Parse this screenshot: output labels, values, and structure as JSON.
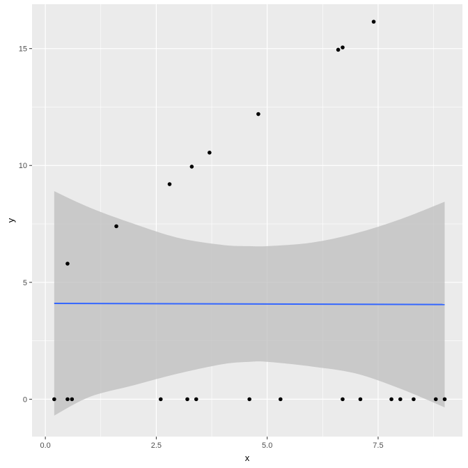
{
  "chart_data": {
    "type": "scatter",
    "title": "",
    "xlabel": "x",
    "ylabel": "y",
    "xlim": [
      -0.3,
      9.4
    ],
    "ylim": [
      -1.6,
      16.9
    ],
    "x_ticks": [
      0,
      2.5,
      5,
      7.5
    ],
    "x_tick_labels": [
      "0.0",
      "2.5",
      "5.0",
      "7.5"
    ],
    "y_ticks": [
      0,
      5,
      10,
      15
    ],
    "y_tick_labels": [
      "0",
      "5",
      "10",
      "15"
    ],
    "grid": true,
    "legend": "none",
    "points": {
      "x": [
        0.2,
        0.5,
        0.5,
        0.6,
        1.6,
        2.6,
        2.8,
        3.2,
        3.3,
        3.4,
        3.7,
        4.6,
        4.8,
        5.3,
        6.6,
        6.7,
        6.7,
        7.1,
        7.4,
        7.8,
        8.0,
        8.3,
        8.8,
        9.0
      ],
      "y": [
        0,
        5.8,
        0,
        0,
        7.4,
        0,
        9.2,
        0,
        9.95,
        0,
        10.55,
        0,
        12.2,
        0,
        14.95,
        15.05,
        0,
        0,
        16.15,
        0,
        0,
        0,
        0,
        0
      ]
    },
    "fit_line": {
      "method": "linear",
      "x": [
        0.2,
        9.0
      ],
      "y": [
        4.1,
        4.05
      ]
    },
    "confidence_band": {
      "x": [
        0.2,
        1.0,
        2.0,
        3.0,
        4.0,
        4.6,
        5.0,
        6.0,
        7.0,
        8.0,
        9.0
      ],
      "lower": [
        -0.7,
        0.1,
        0.6,
        1.1,
        1.5,
        1.6,
        1.6,
        1.4,
        1.1,
        0.45,
        -0.35
      ],
      "upper": [
        8.9,
        8.2,
        7.5,
        6.9,
        6.6,
        6.55,
        6.55,
        6.7,
        7.1,
        7.7,
        8.45
      ]
    },
    "colors": {
      "panel_background": "#ebebeb",
      "grid_major": "#ffffff",
      "points": "#000000",
      "fit_line": "#3366ff",
      "band": "#bebebe"
    }
  }
}
